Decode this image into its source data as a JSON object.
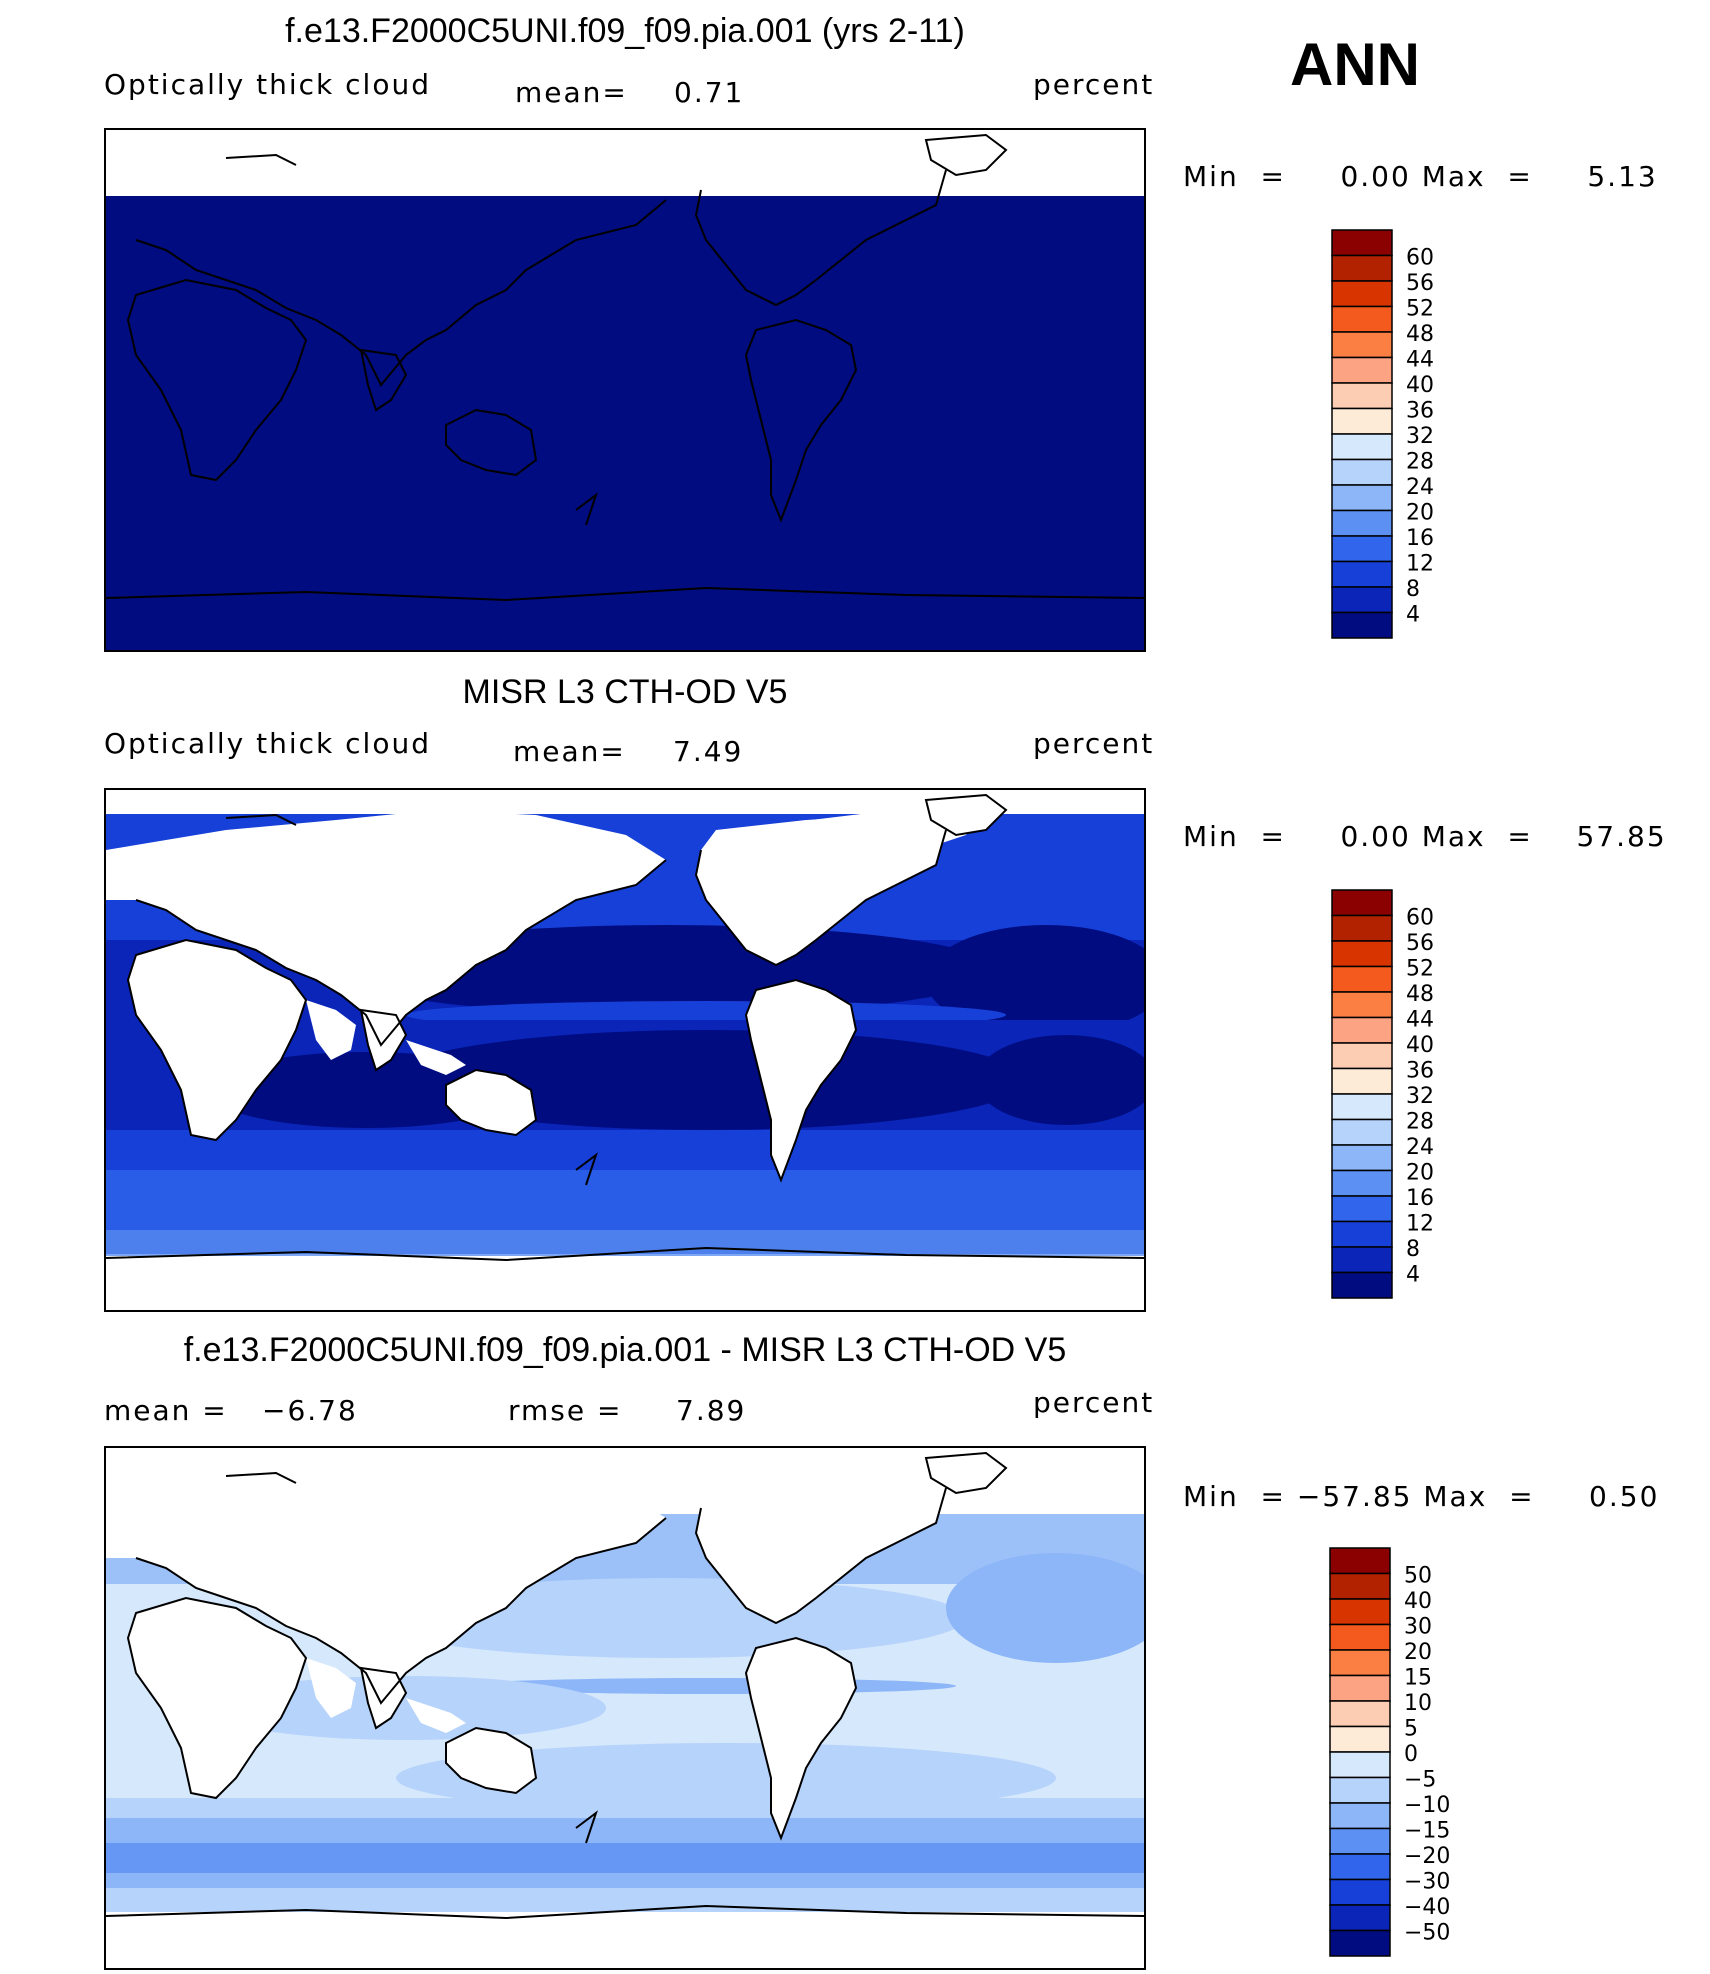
{
  "season_label": "ANN",
  "panels": [
    {
      "title": "f.e13.F2000C5UNI.f09_f09.pia.001 (yrs 2-11)",
      "left_label": "Optically thick cloud",
      "mid_label": "mean=",
      "mid_value": "0.71",
      "extra_label": "",
      "extra_value": "",
      "units": "percent",
      "minmax": {
        "min_label": "Min",
        "min": "0.00",
        "max_label": "Max",
        "max": "5.13"
      }
    },
    {
      "title": "MISR L3 CTH-OD V5",
      "left_label": "Optically thick cloud",
      "mid_label": "mean=",
      "mid_value": "7.49",
      "extra_label": "",
      "extra_value": "",
      "units": "percent",
      "minmax": {
        "min_label": "Min",
        "min": "0.00",
        "max_label": "Max",
        "max": "57.85"
      }
    },
    {
      "title": "f.e13.F2000C5UNI.f09_f09.pia.001 - MISR L3 CTH-OD V5",
      "left_label": "mean =",
      "mid_label": "",
      "mid_value": "−6.78",
      "extra_label": "rmse =",
      "extra_value": "7.89",
      "units": "percent",
      "minmax": {
        "min_label": "Min",
        "min": "−57.85",
        "max_label": "Max",
        "max": "0.50"
      }
    }
  ],
  "colorbars": {
    "field": {
      "labels": [
        "60",
        "56",
        "52",
        "48",
        "44",
        "40",
        "36",
        "32",
        "28",
        "24",
        "20",
        "16",
        "12",
        "8",
        "4"
      ],
      "colors": [
        "#8b0000",
        "#b22200",
        "#d83400",
        "#f45a1e",
        "#fb7e43",
        "#fca383",
        "#fdcdb3",
        "#fdebd8",
        "#d6e8fb",
        "#b6d3fb",
        "#8db6f8",
        "#5c90f2",
        "#3065ec",
        "#1740d8",
        "#0a25b8",
        "#000c80"
      ]
    },
    "diff": {
      "labels": [
        "50",
        "40",
        "30",
        "20",
        "15",
        "10",
        "5",
        "0",
        "−5",
        "−10",
        "−15",
        "−20",
        "−30",
        "−40",
        "−50"
      ],
      "colors": [
        "#8b0000",
        "#b22200",
        "#d83400",
        "#f45a1e",
        "#fb7e43",
        "#fca383",
        "#fdcdb3",
        "#fdebd8",
        "#d6e8fb",
        "#b6d3fb",
        "#8db6f8",
        "#5c90f2",
        "#3065ec",
        "#1740d8",
        "#0a25b8",
        "#000c80"
      ]
    }
  },
  "chart_data": [
    {
      "type": "heatmap",
      "title": "f.e13.F2000C5UNI.f09_f09.pia.001 (yrs 2-11)",
      "variable": "Optically thick cloud",
      "units": "percent",
      "mean": 0.71,
      "min": 0.0,
      "max": 5.13,
      "levels": [
        4,
        8,
        12,
        16,
        20,
        24,
        28,
        32,
        36,
        40,
        44,
        48,
        52,
        56,
        60
      ],
      "fill_by_region": {
        "ocean_and_land_0_to_4": "#000c80"
      }
    },
    {
      "type": "heatmap",
      "title": "MISR L3 CTH-OD V5",
      "variable": "Optically thick cloud",
      "units": "percent",
      "mean": 7.49,
      "min": 0.0,
      "max": 57.85,
      "levels": [
        4,
        8,
        12,
        16,
        20,
        24,
        28,
        32,
        36,
        40,
        44,
        48,
        52,
        56,
        60
      ]
    },
    {
      "type": "heatmap",
      "title": "f.e13.F2000C5UNI.f09_f09.pia.001 - MISR L3 CTH-OD V5",
      "units": "percent",
      "mean": -6.78,
      "rmse": 7.89,
      "min": -57.85,
      "max": 0.5,
      "levels": [
        -50,
        -40,
        -30,
        -20,
        -15,
        -10,
        -5,
        0,
        5,
        10,
        15,
        20,
        30,
        40,
        50
      ]
    }
  ]
}
